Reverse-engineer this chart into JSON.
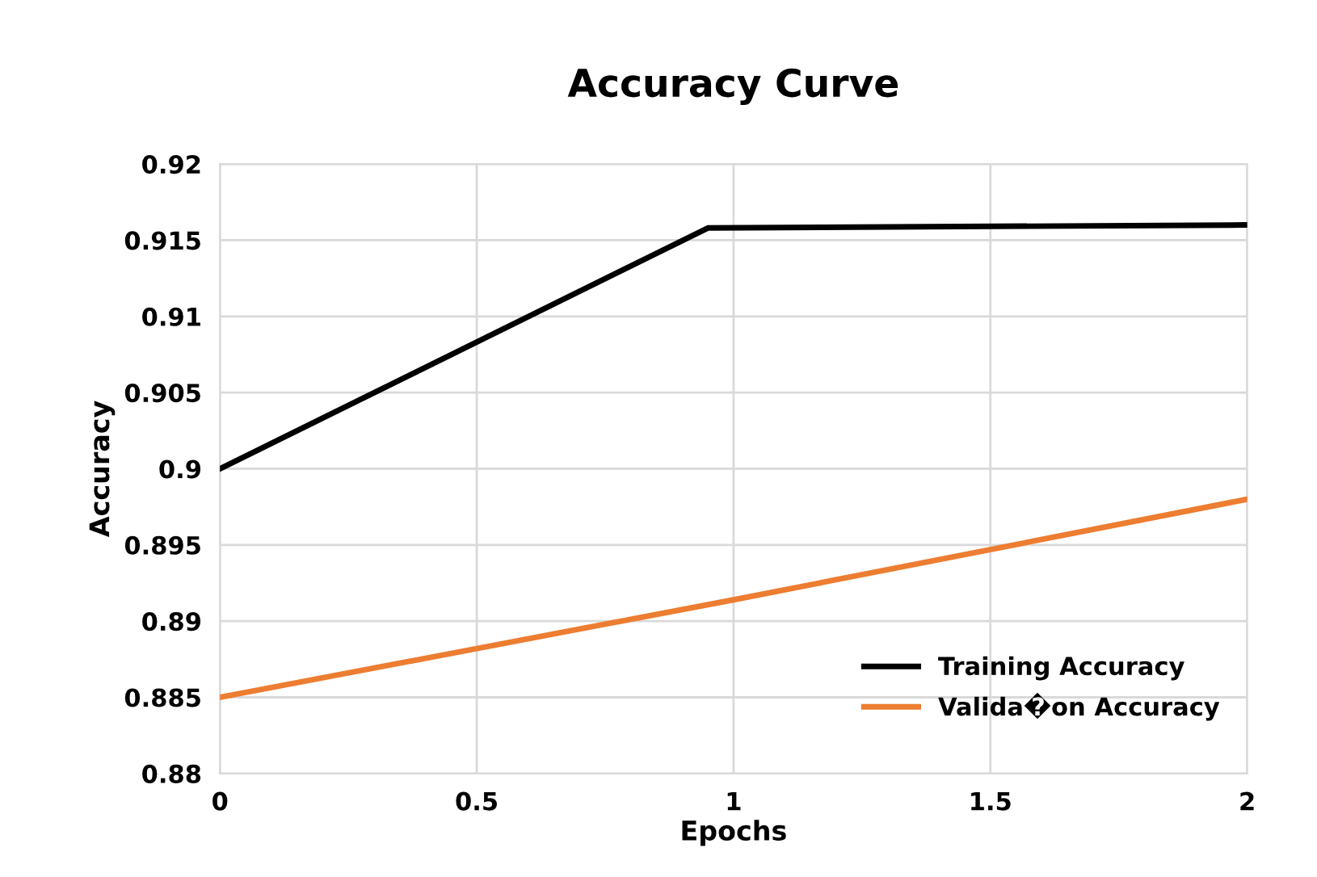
{
  "chart_data": {
    "type": "line",
    "title": "Accuracy Curve",
    "xlabel": "Epochs",
    "ylabel": "Accuracy",
    "series": [
      {
        "name": "Training Accuracy",
        "color": "#000000",
        "x": [
          0,
          0.95,
          2
        ],
        "values": [
          0.9,
          0.9158,
          0.916
        ]
      },
      {
        "name": "Valida�on Accuracy",
        "color": "#ed7d31",
        "x": [
          0,
          1,
          2
        ],
        "values": [
          0.885,
          0.8914,
          0.898
        ]
      }
    ],
    "xlim": [
      0,
      2
    ],
    "xticks": [
      0,
      0.5,
      1,
      1.5,
      2
    ],
    "ylim": [
      0.88,
      0.92
    ],
    "yticks": [
      0.88,
      0.885,
      0.89,
      0.895,
      0.9,
      0.905,
      0.91,
      0.915,
      0.92
    ],
    "grid": true,
    "legend": "bottom right",
    "marker": "none",
    "line_style": "solid"
  }
}
